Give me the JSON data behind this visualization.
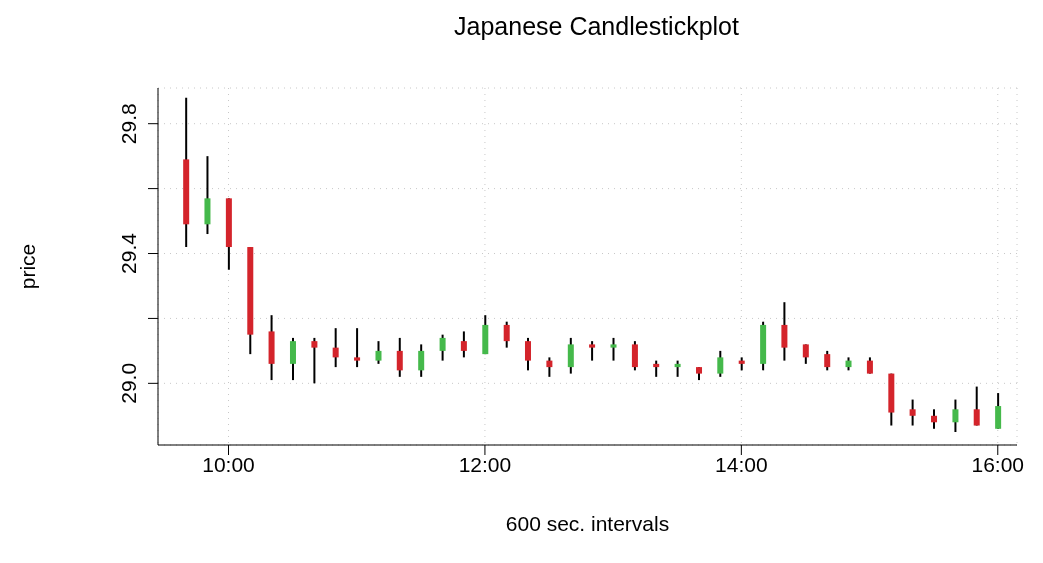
{
  "chart_data": {
    "type": "candlestick",
    "title": "Japanese Candlestickplot",
    "xlabel": "600 sec. intervals",
    "ylabel": "price",
    "x": [
      9.667,
      9.833,
      10,
      10.167,
      10.333,
      10.5,
      10.667,
      10.833,
      11,
      11.167,
      11.333,
      11.5,
      11.667,
      11.833,
      12,
      12.167,
      12.333,
      12.5,
      12.667,
      12.833,
      13,
      13.167,
      13.333,
      13.5,
      13.667,
      13.833,
      14,
      14.167,
      14.333,
      14.5,
      14.667,
      14.833,
      15,
      15.167,
      15.333,
      15.5,
      15.667,
      15.833,
      16
    ],
    "ohlc": [
      [
        29.69,
        29.88,
        29.42,
        29.49
      ],
      [
        29.49,
        29.7,
        29.46,
        29.57
      ],
      [
        29.57,
        29.57,
        29.35,
        29.42
      ],
      [
        29.42,
        29.42,
        29.09,
        29.15
      ],
      [
        29.16,
        29.21,
        29.01,
        29.06
      ],
      [
        29.06,
        29.14,
        29.01,
        29.13
      ],
      [
        29.13,
        29.14,
        29.0,
        29.11
      ],
      [
        29.11,
        29.17,
        29.05,
        29.08
      ],
      [
        29.08,
        29.17,
        29.05,
        29.07
      ],
      [
        29.07,
        29.13,
        29.06,
        29.1
      ],
      [
        29.1,
        29.14,
        29.02,
        29.04
      ],
      [
        29.04,
        29.12,
        29.02,
        29.1
      ],
      [
        29.1,
        29.15,
        29.07,
        29.14
      ],
      [
        29.13,
        29.16,
        29.08,
        29.1
      ],
      [
        29.09,
        29.21,
        29.09,
        29.18
      ],
      [
        29.18,
        29.19,
        29.11,
        29.13
      ],
      [
        29.13,
        29.14,
        29.04,
        29.07
      ],
      [
        29.07,
        29.08,
        29.02,
        29.05
      ],
      [
        29.05,
        29.14,
        29.03,
        29.12
      ],
      [
        29.12,
        29.13,
        29.07,
        29.11
      ],
      [
        29.11,
        29.14,
        29.07,
        29.12
      ],
      [
        29.12,
        29.13,
        29.04,
        29.05
      ],
      [
        29.06,
        29.07,
        29.02,
        29.05
      ],
      [
        29.05,
        29.07,
        29.02,
        29.06
      ],
      [
        29.05,
        29.05,
        29.01,
        29.03
      ],
      [
        29.03,
        29.1,
        29.02,
        29.08
      ],
      [
        29.07,
        29.08,
        29.04,
        29.06
      ],
      [
        29.06,
        29.19,
        29.04,
        29.18
      ],
      [
        29.18,
        29.25,
        29.07,
        29.11
      ],
      [
        29.12,
        29.12,
        29.06,
        29.08
      ],
      [
        29.09,
        29.1,
        29.04,
        29.05
      ],
      [
        29.05,
        29.08,
        29.04,
        29.07
      ],
      [
        29.07,
        29.08,
        29.03,
        29.03
      ],
      [
        29.03,
        29.03,
        28.87,
        28.91
      ],
      [
        28.92,
        28.95,
        28.87,
        28.9
      ],
      [
        28.9,
        28.92,
        28.86,
        28.88
      ],
      [
        28.88,
        28.95,
        28.85,
        28.92
      ],
      [
        28.92,
        28.99,
        28.87,
        28.87
      ],
      [
        28.86,
        28.97,
        28.86,
        28.93
      ]
    ],
    "colors": [
      "#d4242b",
      "#45b94b",
      "#d4242b",
      "#d4242b",
      "#d4242b",
      "#45b94b",
      "#d4242b",
      "#d4242b",
      "#d4242b",
      "#45b94b",
      "#d4242b",
      "#45b94b",
      "#45b94b",
      "#d4242b",
      "#45b94b",
      "#d4242b",
      "#d4242b",
      "#d4242b",
      "#45b94b",
      "#d4242b",
      "#45b94b",
      "#d4242b",
      "#d4242b",
      "#45b94b",
      "#d4242b",
      "#45b94b",
      "#d4242b",
      "#45b94b",
      "#d4242b",
      "#d4242b",
      "#d4242b",
      "#45b94b",
      "#d4242b",
      "#d4242b",
      "#d4242b",
      "#d4242b",
      "#45b94b",
      "#d4242b",
      "#45b94b"
    ],
    "xlim": [
      9.45,
      16.15
    ],
    "xticks": [
      {
        "value": 10,
        "label": "10:00"
      },
      {
        "value": 12,
        "label": "12:00"
      },
      {
        "value": 14,
        "label": "14:00"
      },
      {
        "value": 16,
        "label": "16:00"
      }
    ],
    "ylim": [
      28.81,
      29.91
    ],
    "yticks": [
      {
        "value": 29,
        "label": "29.0"
      },
      {
        "value": 29.2,
        "label": null
      },
      29.4,
      {
        "value": 29.6,
        "label": null
      },
      29.8
    ],
    "grid": true
  }
}
